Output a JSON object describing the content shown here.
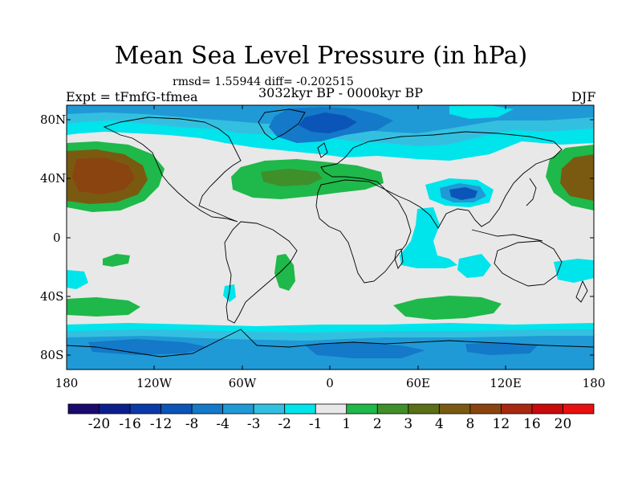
{
  "title": "Mean Sea Level Pressure (in hPa)",
  "stats": "rmsd= 1.55944 diff= -0.202515",
  "experiment": "Expt = tFmfG-tfmea",
  "period": "3032kyr BP - 0000kyr BP",
  "season": "DJF",
  "lat_labels": [
    "80N",
    "40N",
    "0",
    "40S",
    "80S"
  ],
  "lon_labels": [
    "180",
    "120W",
    "60W",
    "0",
    "60E",
    "120E",
    "180"
  ],
  "colorbar": {
    "labels": [
      "-20",
      "-16",
      "-12",
      "-8",
      "-4",
      "-3",
      "-2",
      "-1",
      "1",
      "2",
      "3",
      "4",
      "8",
      "12",
      "16",
      "20"
    ],
    "colors": [
      "#1a0a6e",
      "#0a1f8c",
      "#0b3aa8",
      "#0b55b8",
      "#1479c8",
      "#1f9ad6",
      "#33c0e0",
      "#00e4ec",
      "#e8e8e8",
      "#1fb84a",
      "#3f8f2a",
      "#5a6f16",
      "#7a5a10",
      "#8a4410",
      "#a82810",
      "#c80a0a",
      "#e81010"
    ]
  },
  "colors": {
    "neutral": "#e8e8e8",
    "coast": "#000000"
  }
}
